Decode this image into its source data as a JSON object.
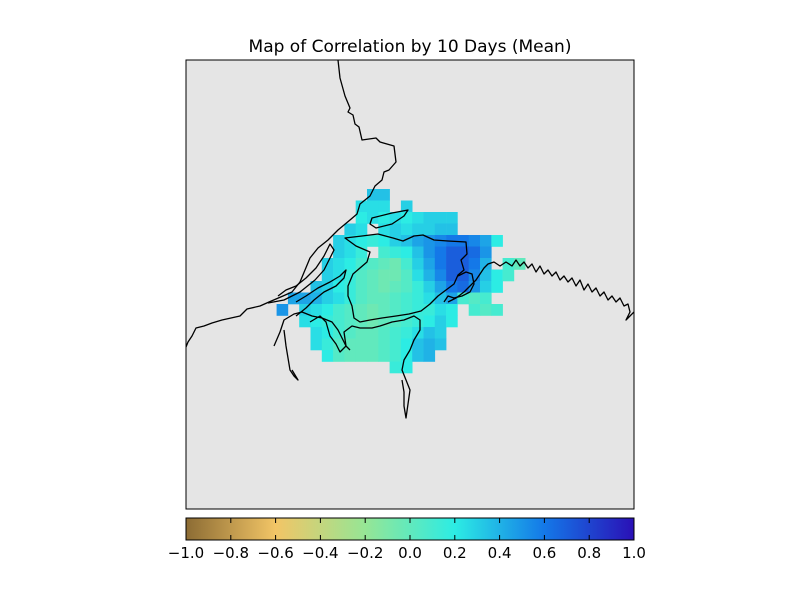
{
  "chart_data": {
    "type": "heatmap",
    "title": "Map of Correlation by 10 Days (Mean)",
    "colorbar": {
      "range": [
        -1.0,
        1.0
      ],
      "ticks": [
        -1.0,
        -0.8,
        -0.6,
        -0.4,
        -0.2,
        0.0,
        0.2,
        0.4,
        0.6,
        0.8,
        1.0
      ],
      "tick_labels": [
        "−1.0",
        "−0.8",
        "−0.6",
        "−0.4",
        "−0.2",
        "0.0",
        "0.2",
        "0.4",
        "0.6",
        "0.8",
        "1.0"
      ],
      "orientation": "horizontal",
      "colormap_stops": [
        {
          "value": -1.0,
          "color": "#8c6c34"
        },
        {
          "value": -0.6,
          "color": "#f2c566"
        },
        {
          "value": -0.2,
          "color": "#96e695"
        },
        {
          "value": 0.2,
          "color": "#2cece4"
        },
        {
          "value": 0.6,
          "color": "#1478e8"
        },
        {
          "value": 1.0,
          "color": "#2a10b6"
        }
      ]
    },
    "map_background": "#e5e5e5",
    "coastline_color": "#000000",
    "grid_cells": [
      {
        "row": 0,
        "col": 10,
        "value": 0.35
      },
      {
        "row": 0,
        "col": 11,
        "value": 0.35
      },
      {
        "row": 1,
        "col": 9,
        "value": 0.25
      },
      {
        "row": 1,
        "col": 10,
        "value": 0.25
      },
      {
        "row": 1,
        "col": 11,
        "value": 0.25
      },
      {
        "row": 1,
        "col": 13,
        "value": 0.3
      },
      {
        "row": 2,
        "col": 9,
        "value": 0.2
      },
      {
        "row": 2,
        "col": 10,
        "value": 0.25
      },
      {
        "row": 2,
        "col": 11,
        "value": 0.2
      },
      {
        "row": 2,
        "col": 12,
        "value": 0.25
      },
      {
        "row": 2,
        "col": 13,
        "value": 0.2
      },
      {
        "row": 2,
        "col": 14,
        "value": 0.25
      },
      {
        "row": 2,
        "col": 15,
        "value": 0.3
      },
      {
        "row": 2,
        "col": 16,
        "value": 0.3
      },
      {
        "row": 2,
        "col": 17,
        "value": 0.3
      },
      {
        "row": 3,
        "col": 8,
        "value": 0.3
      },
      {
        "row": 3,
        "col": 9,
        "value": 0.25
      },
      {
        "row": 3,
        "col": 11,
        "value": 0.25
      },
      {
        "row": 3,
        "col": 12,
        "value": 0.3
      },
      {
        "row": 3,
        "col": 13,
        "value": 0.25
      },
      {
        "row": 3,
        "col": 14,
        "value": 0.3
      },
      {
        "row": 3,
        "col": 15,
        "value": 0.3
      },
      {
        "row": 3,
        "col": 16,
        "value": 0.35
      },
      {
        "row": 3,
        "col": 17,
        "value": 0.35
      },
      {
        "row": 4,
        "col": 7,
        "value": 0.3
      },
      {
        "row": 4,
        "col": 8,
        "value": 0.25
      },
      {
        "row": 4,
        "col": 9,
        "value": 0.2
      },
      {
        "row": 4,
        "col": 10,
        "value": 0.15
      },
      {
        "row": 4,
        "col": 11,
        "value": 0.2
      },
      {
        "row": 4,
        "col": 12,
        "value": 0.3
      },
      {
        "row": 4,
        "col": 13,
        "value": 0.35
      },
      {
        "row": 4,
        "col": 14,
        "value": 0.45
      },
      {
        "row": 4,
        "col": 15,
        "value": 0.5
      },
      {
        "row": 4,
        "col": 16,
        "value": 0.55
      },
      {
        "row": 4,
        "col": 17,
        "value": 0.6
      },
      {
        "row": 4,
        "col": 18,
        "value": 0.6
      },
      {
        "row": 4,
        "col": 19,
        "value": 0.55
      },
      {
        "row": 4,
        "col": 20,
        "value": 0.45
      },
      {
        "row": 4,
        "col": 21,
        "value": 0.2
      },
      {
        "row": 5,
        "col": 7,
        "value": 0.3
      },
      {
        "row": 5,
        "col": 8,
        "value": 0.25
      },
      {
        "row": 5,
        "col": 9,
        "value": 0.15
      },
      {
        "row": 5,
        "col": 11,
        "value": 0.1
      },
      {
        "row": 5,
        "col": 12,
        "value": 0.15
      },
      {
        "row": 5,
        "col": 13,
        "value": 0.2
      },
      {
        "row": 5,
        "col": 14,
        "value": 0.35
      },
      {
        "row": 5,
        "col": 15,
        "value": 0.5
      },
      {
        "row": 5,
        "col": 16,
        "value": 0.6
      },
      {
        "row": 5,
        "col": 17,
        "value": 0.7
      },
      {
        "row": 5,
        "col": 18,
        "value": 0.7
      },
      {
        "row": 5,
        "col": 19,
        "value": 0.65
      },
      {
        "row": 5,
        "col": 20,
        "value": 0.5
      },
      {
        "row": 6,
        "col": 6,
        "value": 0.3
      },
      {
        "row": 6,
        "col": 7,
        "value": 0.25
      },
      {
        "row": 6,
        "col": 8,
        "value": 0.2
      },
      {
        "row": 6,
        "col": 9,
        "value": 0.1
      },
      {
        "row": 6,
        "col": 10,
        "value": 0.05
      },
      {
        "row": 6,
        "col": 11,
        "value": 0.0
      },
      {
        "row": 6,
        "col": 12,
        "value": -0.05
      },
      {
        "row": 6,
        "col": 13,
        "value": 0.1
      },
      {
        "row": 6,
        "col": 14,
        "value": 0.3
      },
      {
        "row": 6,
        "col": 15,
        "value": 0.45
      },
      {
        "row": 6,
        "col": 16,
        "value": 0.6
      },
      {
        "row": 6,
        "col": 17,
        "value": 0.7
      },
      {
        "row": 6,
        "col": 18,
        "value": 0.7
      },
      {
        "row": 6,
        "col": 19,
        "value": 0.6
      },
      {
        "row": 6,
        "col": 20,
        "value": 0.4
      },
      {
        "row": 6,
        "col": 22,
        "value": 0.1
      },
      {
        "row": 6,
        "col": 23,
        "value": 0.0
      },
      {
        "row": 7,
        "col": 6,
        "value": 0.3
      },
      {
        "row": 7,
        "col": 7,
        "value": 0.25
      },
      {
        "row": 7,
        "col": 8,
        "value": 0.15
      },
      {
        "row": 7,
        "col": 9,
        "value": 0.05
      },
      {
        "row": 7,
        "col": 10,
        "value": 0.0
      },
      {
        "row": 7,
        "col": 11,
        "value": -0.05
      },
      {
        "row": 7,
        "col": 12,
        "value": -0.05
      },
      {
        "row": 7,
        "col": 13,
        "value": 0.05
      },
      {
        "row": 7,
        "col": 14,
        "value": 0.25
      },
      {
        "row": 7,
        "col": 15,
        "value": 0.4
      },
      {
        "row": 7,
        "col": 16,
        "value": 0.55
      },
      {
        "row": 7,
        "col": 17,
        "value": 0.7
      },
      {
        "row": 7,
        "col": 18,
        "value": 0.7
      },
      {
        "row": 7,
        "col": 19,
        "value": 0.55
      },
      {
        "row": 7,
        "col": 20,
        "value": 0.35
      },
      {
        "row": 7,
        "col": 21,
        "value": 0.2
      },
      {
        "row": 7,
        "col": 22,
        "value": 0.1
      },
      {
        "row": 8,
        "col": 5,
        "value": 0.35
      },
      {
        "row": 8,
        "col": 6,
        "value": 0.3
      },
      {
        "row": 8,
        "col": 7,
        "value": 0.2
      },
      {
        "row": 8,
        "col": 8,
        "value": 0.15
      },
      {
        "row": 8,
        "col": 9,
        "value": 0.05
      },
      {
        "row": 8,
        "col": 10,
        "value": 0.0
      },
      {
        "row": 8,
        "col": 11,
        "value": -0.05
      },
      {
        "row": 8,
        "col": 12,
        "value": 0.0
      },
      {
        "row": 8,
        "col": 13,
        "value": 0.05
      },
      {
        "row": 8,
        "col": 14,
        "value": 0.15
      },
      {
        "row": 8,
        "col": 15,
        "value": 0.3
      },
      {
        "row": 8,
        "col": 16,
        "value": 0.45
      },
      {
        "row": 8,
        "col": 17,
        "value": 0.6
      },
      {
        "row": 8,
        "col": 18,
        "value": 0.65
      },
      {
        "row": 8,
        "col": 19,
        "value": 0.5
      },
      {
        "row": 8,
        "col": 20,
        "value": 0.3
      },
      {
        "row": 8,
        "col": 21,
        "value": 0.2
      },
      {
        "row": 9,
        "col": 3,
        "value": 0.45
      },
      {
        "row": 9,
        "col": 4,
        "value": 0.45
      },
      {
        "row": 9,
        "col": 5,
        "value": 0.4
      },
      {
        "row": 9,
        "col": 6,
        "value": 0.3
      },
      {
        "row": 9,
        "col": 7,
        "value": 0.25
      },
      {
        "row": 9,
        "col": 8,
        "value": 0.15
      },
      {
        "row": 9,
        "col": 9,
        "value": 0.05
      },
      {
        "row": 9,
        "col": 10,
        "value": 0.0
      },
      {
        "row": 9,
        "col": 11,
        "value": 0.0
      },
      {
        "row": 9,
        "col": 12,
        "value": 0.05
      },
      {
        "row": 9,
        "col": 13,
        "value": 0.1
      },
      {
        "row": 9,
        "col": 14,
        "value": 0.15
      },
      {
        "row": 9,
        "col": 15,
        "value": 0.25
      },
      {
        "row": 9,
        "col": 16,
        "value": 0.35
      },
      {
        "row": 9,
        "col": 17,
        "value": 0.45
      },
      {
        "row": 9,
        "col": 18,
        "value": 0.1
      },
      {
        "row": 9,
        "col": 19,
        "value": 0.05
      },
      {
        "row": 9,
        "col": 20,
        "value": 0.1
      },
      {
        "row": 10,
        "col": 2,
        "value": 0.5
      },
      {
        "row": 10,
        "col": 4,
        "value": 0.3
      },
      {
        "row": 10,
        "col": 5,
        "value": 0.25
      },
      {
        "row": 10,
        "col": 6,
        "value": 0.2
      },
      {
        "row": 10,
        "col": 7,
        "value": 0.1
      },
      {
        "row": 10,
        "col": 8,
        "value": 0.05
      },
      {
        "row": 10,
        "col": 9,
        "value": 0.0
      },
      {
        "row": 10,
        "col": 10,
        "value": -0.05
      },
      {
        "row": 10,
        "col": 11,
        "value": 0.0
      },
      {
        "row": 10,
        "col": 12,
        "value": 0.05
      },
      {
        "row": 10,
        "col": 13,
        "value": 0.1
      },
      {
        "row": 10,
        "col": 14,
        "value": 0.15
      },
      {
        "row": 10,
        "col": 15,
        "value": 0.15
      },
      {
        "row": 10,
        "col": 16,
        "value": 0.25
      },
      {
        "row": 10,
        "col": 17,
        "value": 0.2
      },
      {
        "row": 10,
        "col": 19,
        "value": 0.1
      },
      {
        "row": 10,
        "col": 20,
        "value": 0.05
      },
      {
        "row": 10,
        "col": 21,
        "value": 0.1
      },
      {
        "row": 11,
        "col": 4,
        "value": 0.25
      },
      {
        "row": 11,
        "col": 5,
        "value": 0.2
      },
      {
        "row": 11,
        "col": 6,
        "value": 0.15
      },
      {
        "row": 11,
        "col": 7,
        "value": 0.1
      },
      {
        "row": 11,
        "col": 8,
        "value": 0.05
      },
      {
        "row": 11,
        "col": 9,
        "value": 0.0
      },
      {
        "row": 11,
        "col": 10,
        "value": -0.05
      },
      {
        "row": 11,
        "col": 11,
        "value": 0.0
      },
      {
        "row": 11,
        "col": 12,
        "value": 0.05
      },
      {
        "row": 11,
        "col": 13,
        "value": 0.1
      },
      {
        "row": 11,
        "col": 14,
        "value": 0.15
      },
      {
        "row": 11,
        "col": 15,
        "value": 0.2
      },
      {
        "row": 11,
        "col": 16,
        "value": 0.3
      },
      {
        "row": 11,
        "col": 17,
        "value": 0.2
      },
      {
        "row": 12,
        "col": 5,
        "value": 0.25
      },
      {
        "row": 12,
        "col": 6,
        "value": 0.2
      },
      {
        "row": 12,
        "col": 7,
        "value": 0.1
      },
      {
        "row": 12,
        "col": 8,
        "value": 0.05
      },
      {
        "row": 12,
        "col": 9,
        "value": 0.0
      },
      {
        "row": 12,
        "col": 10,
        "value": 0.0
      },
      {
        "row": 12,
        "col": 11,
        "value": 0.05
      },
      {
        "row": 12,
        "col": 12,
        "value": 0.1
      },
      {
        "row": 12,
        "col": 13,
        "value": 0.15
      },
      {
        "row": 12,
        "col": 14,
        "value": 0.25
      },
      {
        "row": 12,
        "col": 15,
        "value": 0.35
      },
      {
        "row": 12,
        "col": 16,
        "value": 0.3
      },
      {
        "row": 13,
        "col": 5,
        "value": 0.25
      },
      {
        "row": 13,
        "col": 6,
        "value": 0.15
      },
      {
        "row": 13,
        "col": 7,
        "value": 0.05
      },
      {
        "row": 13,
        "col": 8,
        "value": 0.0
      },
      {
        "row": 13,
        "col": 9,
        "value": 0.0
      },
      {
        "row": 13,
        "col": 10,
        "value": 0.0
      },
      {
        "row": 13,
        "col": 11,
        "value": 0.05
      },
      {
        "row": 13,
        "col": 12,
        "value": 0.1
      },
      {
        "row": 13,
        "col": 13,
        "value": 0.2
      },
      {
        "row": 13,
        "col": 14,
        "value": 0.35
      },
      {
        "row": 13,
        "col": 15,
        "value": 0.4
      },
      {
        "row": 13,
        "col": 16,
        "value": 0.35
      },
      {
        "row": 14,
        "col": 6,
        "value": 0.2
      },
      {
        "row": 14,
        "col": 7,
        "value": 0.05
      },
      {
        "row": 14,
        "col": 8,
        "value": 0.0
      },
      {
        "row": 14,
        "col": 9,
        "value": 0.0
      },
      {
        "row": 14,
        "col": 10,
        "value": 0.0
      },
      {
        "row": 14,
        "col": 11,
        "value": 0.05
      },
      {
        "row": 14,
        "col": 12,
        "value": 0.1
      },
      {
        "row": 14,
        "col": 13,
        "value": 0.2
      },
      {
        "row": 14,
        "col": 14,
        "value": 0.35
      },
      {
        "row": 14,
        "col": 15,
        "value": 0.4
      },
      {
        "row": 15,
        "col": 12,
        "value": 0.15
      },
      {
        "row": 15,
        "col": 13,
        "value": 0.2
      }
    ]
  }
}
